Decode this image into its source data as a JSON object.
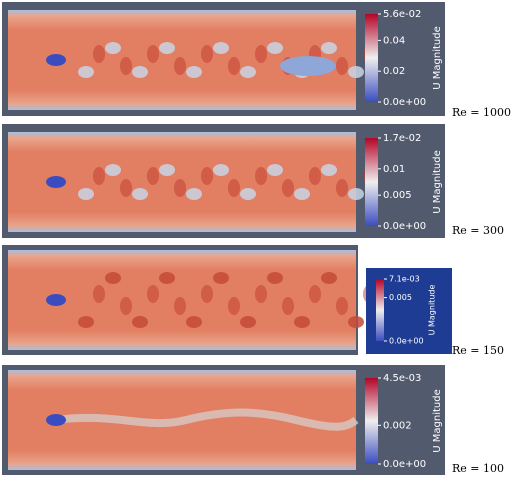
{
  "panels": [
    {
      "label": "Re = 1000",
      "colorbar": {
        "title": "U Magnitude",
        "ticks": [
          "5.6e-02",
          "0.04",
          "0.02",
          "0.0e+00"
        ]
      }
    },
    {
      "label": "Re = 300",
      "colorbar": {
        "title": "U Magnitude",
        "ticks": [
          "1.7e-02",
          "0.01",
          "0.005",
          "0.0e+00"
        ]
      }
    },
    {
      "label": "Re = 150",
      "colorbar": {
        "title": "U Magnitude",
        "ticks": [
          "7.1e-03",
          "0.005",
          "0.0e+00"
        ]
      }
    },
    {
      "label": "Re = 100",
      "colorbar": {
        "title": "U Magnitude",
        "ticks": [
          "4.5e-03",
          "0.002",
          "0.0e+00"
        ]
      }
    }
  ]
}
